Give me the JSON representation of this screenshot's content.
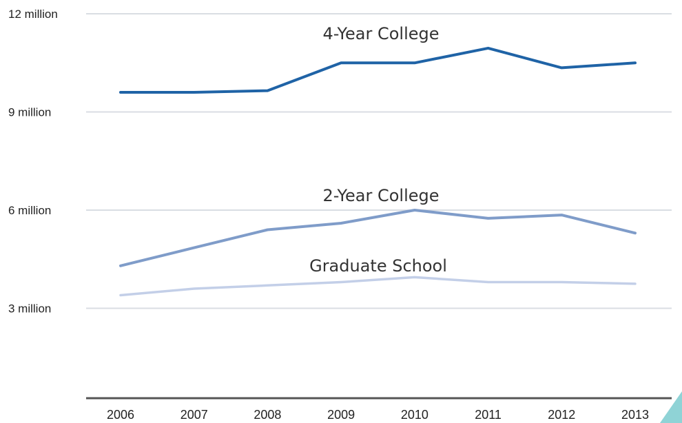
{
  "chart_data": {
    "type": "line",
    "title": "",
    "xlabel": "",
    "ylabel": "",
    "categories": [
      "2006",
      "2007",
      "2008",
      "2009",
      "2010",
      "2011",
      "2012",
      "2013"
    ],
    "ylim": [
      0,
      12
    ],
    "y_ticks": [
      {
        "value": 3,
        "label": "3 million"
      },
      {
        "value": 6,
        "label": "6 million"
      },
      {
        "value": 9,
        "label": "9 million"
      },
      {
        "value": 12,
        "label": "12 million"
      }
    ],
    "grid": true,
    "series": [
      {
        "name": "4-Year College",
        "color": "#1f63a6",
        "values": [
          9.6,
          9.6,
          9.65,
          10.5,
          10.5,
          10.95,
          10.35,
          10.5
        ]
      },
      {
        "name": "2-Year College",
        "color": "#7f9cc9",
        "values": [
          4.3,
          4.85,
          5.4,
          5.6,
          6.0,
          5.75,
          5.85,
          5.3
        ]
      },
      {
        "name": "Graduate School",
        "color": "#c3cfe8",
        "values": [
          3.4,
          3.6,
          3.7,
          3.8,
          3.95,
          3.8,
          3.8,
          3.75
        ]
      }
    ]
  }
}
